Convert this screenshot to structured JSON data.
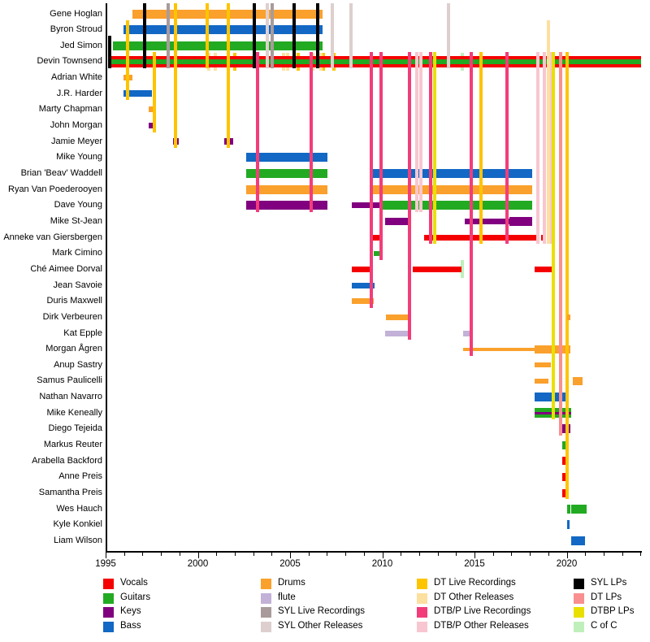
{
  "chart_data": {
    "type": "timeline",
    "description": "Band members timeline (Devin Townsend related projects), horizontal bars per member by instrument with vertical release lines",
    "x_axis": {
      "start": 1995,
      "end": 2024,
      "major_tick_labels": [
        "1995",
        "2000",
        "2005",
        "2010",
        "2015",
        "2020"
      ],
      "major_tick_years": [
        1995,
        2000,
        2005,
        2010,
        2015,
        2020
      ]
    },
    "colors": {
      "vocals": "#f40000",
      "guitars": "#22aa22",
      "keys": "#800080",
      "bass": "#1268c4",
      "drums": "#faa02c",
      "flute": "#c3b1d8",
      "syl_live": "#a99b9b",
      "syl_other": "#decfcf",
      "dt_live": "#fdc400",
      "dt_other": "#fce0a0",
      "dtbp_live": "#f23d7a",
      "dtbp_other": "#f8c6d0",
      "syl_lp": "#000000",
      "dt_lp": "#f98f8f",
      "dtbp_lp": "#e9e000",
      "cofc": "#bff0bb"
    },
    "members": [
      {
        "name": "Gene Hoglan",
        "segments": [
          {
            "role": "drums",
            "from": 1996.45,
            "to": 2006.76
          }
        ]
      },
      {
        "name": "Byron Stroud",
        "segments": [
          {
            "role": "bass",
            "from": 1995.97,
            "to": 2006.76
          }
        ]
      },
      {
        "name": "Jed Simon",
        "segments": [
          {
            "role": "guitars",
            "from": 1995.4,
            "to": 2006.76
          }
        ]
      },
      {
        "name": "Devin Townsend",
        "segments": [
          {
            "role": "vg",
            "from": 1995.13,
            "to": 2024.05
          }
        ]
      },
      {
        "name": "Adrian White",
        "segments": [
          {
            "role": "drums",
            "from": 1995.97,
            "to": 1996.45,
            "h": 7
          }
        ]
      },
      {
        "name": "J.R. Harder",
        "segments": [
          {
            "role": "bass",
            "from": 1995.97,
            "to": 1997.51,
            "h": 8
          }
        ]
      },
      {
        "name": "Marty Chapman",
        "segments": [
          {
            "role": "drums",
            "from": 1997.33,
            "to": 1997.73,
            "h": 7
          }
        ]
      },
      {
        "name": "John Morgan",
        "segments": [
          {
            "role": "keys",
            "from": 1997.33,
            "to": 1997.73,
            "h": 7
          }
        ]
      },
      {
        "name": "Jamie Meyer",
        "segments": [
          {
            "role": "keys",
            "from": 1998.66,
            "to": 1998.96,
            "h": 8
          },
          {
            "role": "keys",
            "from": 2001.43,
            "to": 2001.92,
            "h": 8
          }
        ]
      },
      {
        "name": "Mike Young",
        "segments": [
          {
            "role": "bass",
            "from": 2002.62,
            "to": 2007.03
          }
        ]
      },
      {
        "name": "Brian 'Beav' Waddell",
        "segments": [
          {
            "role": "guitars",
            "from": 2002.62,
            "to": 2007.03
          },
          {
            "role": "bass",
            "from": 2009.49,
            "to": 2018.13
          }
        ]
      },
      {
        "name": "Ryan Van Poederooyen",
        "segments": [
          {
            "role": "drums",
            "from": 2002.62,
            "to": 2007.03
          },
          {
            "role": "drums",
            "from": 2009.49,
            "to": 2018.13
          }
        ]
      },
      {
        "name": "Dave Young",
        "segments": [
          {
            "role": "keys",
            "from": 2002.62,
            "to": 2007.03
          },
          {
            "role": "keys",
            "from": 2008.35,
            "to": 2009.89,
            "h": 7
          },
          {
            "role": "guitars",
            "from": 2009.93,
            "to": 2018.13
          }
        ]
      },
      {
        "name": "Mike St-Jean",
        "segments": [
          {
            "role": "keys",
            "from": 2010.15,
            "to": 2011.39,
            "h": 9
          },
          {
            "role": "keys",
            "from": 2014.47,
            "to": 2016.89,
            "h": 7
          },
          {
            "role": "keys",
            "from": 2016.89,
            "to": 2018.13
          }
        ]
      },
      {
        "name": "Anneke van Giersbergen",
        "segments": [
          {
            "role": "vocals",
            "from": 2009.49,
            "to": 2010.02,
            "h": 7
          },
          {
            "role": "vocals",
            "from": 2012.27,
            "to": 2018.48,
            "h": 7
          },
          {
            "role": "vocals",
            "from": 2018.61,
            "to": 2018.79,
            "h": 7
          },
          {
            "role": "vocals",
            "from": 2018.92,
            "to": 2019.13,
            "h": 7
          }
        ]
      },
      {
        "name": "Mark Cimino",
        "segments": [
          {
            "role": "guitars",
            "from": 2009.53,
            "to": 2009.97,
            "h": 6
          }
        ]
      },
      {
        "name": "Ché Aimee Dorval",
        "segments": [
          {
            "role": "vocals",
            "from": 2008.35,
            "to": 2009.49,
            "h": 7
          },
          {
            "role": "vocals",
            "from": 2011.65,
            "to": 2014.3,
            "h": 7
          },
          {
            "role": "vocals",
            "from": 2018.26,
            "to": 2019.22,
            "h": 7
          }
        ]
      },
      {
        "name": "Jean Savoie",
        "segments": [
          {
            "role": "bass",
            "from": 2008.35,
            "to": 2009.58,
            "h": 7
          }
        ]
      },
      {
        "name": "Duris Maxwell",
        "segments": [
          {
            "role": "drums",
            "from": 2008.35,
            "to": 2009.53,
            "h": 7
          }
        ]
      },
      {
        "name": "Dirk Verbeuren",
        "segments": [
          {
            "role": "drums",
            "from": 2010.2,
            "to": 2011.43,
            "h": 7
          },
          {
            "role": "drums",
            "from": 2020.0,
            "to": 2020.18,
            "h": 7,
            "z": 40
          }
        ]
      },
      {
        "name": "Kat Epple",
        "segments": [
          {
            "role": "flute",
            "from": 2010.15,
            "to": 2011.43,
            "h": 7
          },
          {
            "role": "flute",
            "from": 2014.38,
            "to": 2014.74,
            "h": 7
          }
        ]
      },
      {
        "name": "Morgan Ågren",
        "segments": [
          {
            "role": "drums",
            "from": 2014.38,
            "to": 2018.26,
            "h": 4
          },
          {
            "role": "drums",
            "from": 2018.26,
            "to": 2020.18,
            "h": 10
          }
        ]
      },
      {
        "name": "Anup Sastry",
        "segments": [
          {
            "role": "drums",
            "from": 2018.26,
            "to": 2019.13,
            "h": 6
          }
        ]
      },
      {
        "name": "Samus Paulicelli",
        "segments": [
          {
            "role": "drums",
            "from": 2018.26,
            "to": 2019.0,
            "h": 6
          },
          {
            "role": "drums",
            "from": 2020.31,
            "to": 2020.88,
            "h": 10
          }
        ]
      },
      {
        "name": "Nathan Navarro",
        "segments": [
          {
            "role": "bass",
            "from": 2018.26,
            "to": 2020.09
          }
        ]
      },
      {
        "name": "Mike Keneally",
        "segments": [
          {
            "role": "gk",
            "from": 2018.26,
            "to": 2020.26
          }
        ]
      },
      {
        "name": "Diego Tejeida",
        "segments": [
          {
            "role": "keys",
            "from": 2019.75,
            "to": 2020.22
          }
        ]
      },
      {
        "name": "Markus Reuter",
        "segments": [
          {
            "role": "guitars",
            "from": 2019.75,
            "to": 2019.97,
            "h": 10
          }
        ]
      },
      {
        "name": "Arabella Backford",
        "segments": [
          {
            "role": "vocals",
            "from": 2019.75,
            "to": 2019.97,
            "h": 10
          }
        ]
      },
      {
        "name": "Anne Preis",
        "segments": [
          {
            "role": "vocals",
            "from": 2019.75,
            "to": 2019.97,
            "h": 10
          }
        ]
      },
      {
        "name": "Samantha Preis",
        "segments": [
          {
            "role": "vocals",
            "from": 2019.75,
            "to": 2019.97,
            "h": 10
          }
        ]
      },
      {
        "name": "Wes Hauch",
        "segments": [
          {
            "role": "guitars",
            "from": 2020.0,
            "to": 2020.18
          },
          {
            "role": "guitars",
            "from": 2020.26,
            "to": 2021.06
          }
        ]
      },
      {
        "name": "Kyle Konkiel",
        "segments": [
          {
            "role": "bass",
            "from": 2020.0,
            "to": 2020.13
          }
        ]
      },
      {
        "name": "Liam Wilson",
        "segments": [
          {
            "role": "bass",
            "from": 2020.26,
            "to": 2020.97
          }
        ]
      }
    ],
    "events": [
      {
        "t": "syl_lp",
        "y": 1995.2,
        "r1": 3,
        "r2": 4
      },
      {
        "t": "syl_lp",
        "y": 1997.11,
        "r1": 1,
        "r2": 4
      },
      {
        "t": "syl_lp",
        "y": 2003.06,
        "r1": 1,
        "r2": 4
      },
      {
        "t": "syl_lp",
        "y": 2005.22,
        "r1": 1,
        "r2": 4
      },
      {
        "t": "syl_lp",
        "y": 2006.5,
        "r1": 1,
        "r2": 4
      },
      {
        "t": "syl_live",
        "y": 1998.39,
        "r1": 1,
        "r2": 4
      },
      {
        "t": "syl_live",
        "y": 2004.03,
        "r1": 1,
        "r2": 4
      },
      {
        "t": "syl_other",
        "y": 2003.77,
        "r1": 1,
        "r2": 4
      },
      {
        "t": "syl_other",
        "y": 2007.29,
        "r1": 1,
        "r2": 4
      },
      {
        "t": "syl_other",
        "y": 2008.3,
        "r1": 1,
        "r2": 4
      },
      {
        "t": "syl_other",
        "y": 2013.59,
        "r1": 1,
        "r2": 4
      },
      {
        "t": "dt_live",
        "y": 1996.19,
        "r1": 2,
        "r2": 6
      },
      {
        "t": "dt_live",
        "y": 1997.64,
        "r1": 4,
        "r2": 8
      },
      {
        "t": "dt_live",
        "y": 1998.79,
        "r1": 1,
        "r2": 9
      },
      {
        "t": "dt_live",
        "y": 2000.51,
        "r1": 1,
        "r2": 4
      },
      {
        "t": "dt_live",
        "y": 2001.65,
        "r1": 1,
        "r2": 9
      },
      {
        "t": "dt_live",
        "y": 2002.0,
        "r1": 4,
        "r2": 4,
        "tick": true
      },
      {
        "t": "dt_live",
        "y": 2005.44,
        "r1": 4,
        "r2": 4,
        "tick": true
      },
      {
        "t": "dt_live",
        "y": 2006.8,
        "r1": 4,
        "r2": 4,
        "tick": true
      },
      {
        "t": "dt_live",
        "y": 2007.38,
        "r1": 4,
        "r2": 4,
        "tick": true
      },
      {
        "t": "dtbp_lp",
        "y": 2012.84,
        "r1": 4,
        "r2": 15
      },
      {
        "t": "dt_live",
        "y": 2015.35,
        "r1": 4,
        "r2": 15
      },
      {
        "t": "dtbp_lp",
        "y": 2019.27,
        "r1": 4,
        "r2": 26
      },
      {
        "t": "dt_live",
        "y": 2020.0,
        "r1": 4,
        "r2": 31
      },
      {
        "t": "dtbp_live",
        "y": 2003.24,
        "r1": 4,
        "r2": 13
      },
      {
        "t": "dtbp_live",
        "y": 2006.15,
        "r1": 4,
        "r2": 13
      },
      {
        "t": "dtbp_live",
        "y": 2009.4,
        "r1": 4,
        "r2": 19
      },
      {
        "t": "dtbp_live",
        "y": 2009.93,
        "r1": 4,
        "r2": 16
      },
      {
        "t": "dtbp_live",
        "y": 2011.48,
        "r1": 4,
        "r2": 21
      },
      {
        "t": "dtbp_live",
        "y": 2012.62,
        "r1": 4,
        "r2": 15
      },
      {
        "t": "dtbp_live",
        "y": 2014.82,
        "r1": 4,
        "r2": 22
      },
      {
        "t": "dtbp_live",
        "y": 2016.76,
        "r1": 4,
        "r2": 15
      },
      {
        "t": "dt_lp",
        "y": 2019.66,
        "r1": 4,
        "r2": 27
      },
      {
        "t": "dtbp_other",
        "y": 2011.87,
        "r1": 4,
        "r2": 13
      },
      {
        "t": "dtbp_other",
        "y": 2012.09,
        "r1": 4,
        "r2": 13
      },
      {
        "t": "dtbp_other",
        "y": 2018.43,
        "r1": 4,
        "r2": 15
      },
      {
        "t": "dtbp_other",
        "y": 2018.79,
        "r1": 4,
        "r2": 15
      },
      {
        "t": "dtbp_other",
        "y": 2019.09,
        "r1": 4,
        "r2": 15
      },
      {
        "t": "dt_other",
        "y": 2019.0,
        "r1": 2,
        "r2": 15
      },
      {
        "t": "dt_other",
        "y": 2000.59,
        "r1": 4,
        "r2": 4,
        "tick": true
      },
      {
        "t": "dt_other",
        "y": 2000.95,
        "r1": 4,
        "r2": 4,
        "tick": true
      },
      {
        "t": "dt_other",
        "y": 2004.65,
        "r1": 4,
        "r2": 4,
        "tick": true
      },
      {
        "t": "dt_other",
        "y": 2004.87,
        "r1": 4,
        "r2": 4,
        "tick": true
      },
      {
        "t": "dt_other",
        "y": 2006.23,
        "r1": 4,
        "r2": 4,
        "tick": true
      },
      {
        "t": "dt_other",
        "y": 2006.67,
        "r1": 4,
        "r2": 4,
        "tick": true
      },
      {
        "t": "cofc",
        "y": 2014.34,
        "r1": 4,
        "r2": 4,
        "tick": true
      },
      {
        "t": "cofc",
        "y": 2014.34,
        "r1": 17,
        "r2": 17,
        "tick": true
      }
    ]
  },
  "legend": {
    "columns": [
      {
        "items": [
          {
            "label": "Vocals",
            "color": "vocals"
          },
          {
            "label": "Guitars",
            "color": "guitars"
          },
          {
            "label": "Keys",
            "color": "keys"
          },
          {
            "label": "Bass",
            "color": "bass"
          }
        ]
      },
      {
        "items": [
          {
            "label": "Drums",
            "color": "drums"
          },
          {
            "label": "flute",
            "color": "flute"
          },
          {
            "label": "SYL Live Recordings",
            "color": "syl_live"
          },
          {
            "label": "SYL Other Releases",
            "color": "syl_other"
          }
        ]
      },
      {
        "items": [
          {
            "label": "DT Live Recordings",
            "color": "dt_live"
          },
          {
            "label": "DT Other Releases",
            "color": "dt_other"
          },
          {
            "label": "DTB/P Live Recordings",
            "color": "dtbp_live"
          },
          {
            "label": "DTB/P Other Releases",
            "color": "dtbp_other"
          }
        ]
      },
      {
        "items": [
          {
            "label": "SYL LPs",
            "color": "syl_lp"
          },
          {
            "label": "DT LPs",
            "color": "dt_lp"
          },
          {
            "label": "DTBP LPs",
            "color": "dtbp_lp"
          },
          {
            "label": "C of C",
            "color": "cofc"
          }
        ]
      }
    ]
  }
}
